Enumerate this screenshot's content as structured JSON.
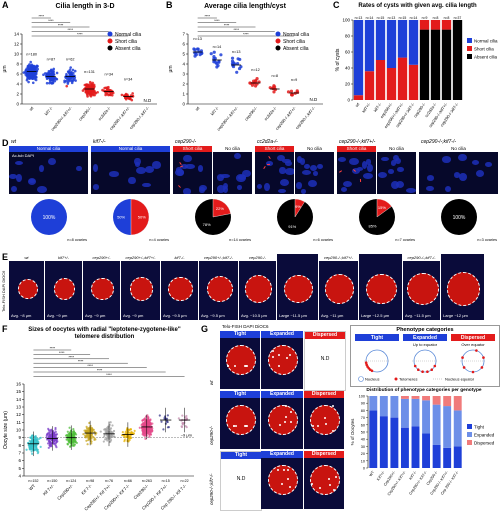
{
  "panels": {
    "A": {
      "letter": "A",
      "title": "Cilia length in 3-D",
      "ylabel": "μm",
      "legend": [
        "Normal cilia",
        "Short cilia",
        "Absent cilia"
      ],
      "genotypes": [
        "wt",
        "kif7-/-",
        "cep290+/-;kif7+/-",
        "cep290-/-",
        "cc2d2a-/-",
        "cep290-/-;kif7+/-",
        "cep290-/-;kif7-/-"
      ],
      "n": [
        "n=180",
        "n=87",
        "n=62",
        "n=131",
        "n=34",
        "n=34"
      ],
      "nd": "N.D",
      "stars": "****",
      "yticks": [
        "0",
        "2",
        "4",
        "6",
        "8",
        "10",
        "12",
        "14"
      ]
    },
    "B": {
      "letter": "B",
      "title": "Average cilia length/cyst",
      "ylabel": "μm",
      "legend": [
        "Normal cilia",
        "Short cilia",
        "Absent cilia"
      ],
      "n": [
        "n=13",
        "n=14",
        "n=13",
        "n=12",
        "n=8",
        "n=9"
      ],
      "nd": "N.D",
      "stars": "****",
      "yticks": [
        "0",
        "1",
        "2",
        "3",
        "4",
        "5",
        "6",
        "7"
      ]
    },
    "C": {
      "letter": "C",
      "title": "Rates of cysts with given avg. cilia length",
      "ylabel": "% of cysts",
      "legend": [
        "Normal cilia",
        "Short cilia",
        "Absent cilia"
      ],
      "n": [
        "n=13",
        "n=14",
        "n=15",
        "n=13",
        "n=15",
        "n=14",
        "n=9",
        "n=8",
        "n=8",
        "n=37"
      ],
      "genotypes": [
        "wt",
        "kif7+/-",
        "kif7-/-",
        "cep290+/-",
        "cep290+/-;kif7+/-",
        "cep290+/-;kif7-/-",
        "cep290-/-",
        "cc2d2a-/-",
        "cep290-/-;kif7+/-",
        "cep290-/-;kif7-/-"
      ],
      "yticks": [
        "0",
        "20",
        "40",
        "60",
        "80",
        "100"
      ]
    },
    "D": {
      "letter": "D",
      "groups": [
        {
          "genotype": "wt",
          "tiles": [
            "Normal cilia"
          ],
          "pie": "100%",
          "n": "n=8 ovaries"
        },
        {
          "genotype": "kif7-/-",
          "tiles": [
            "Normal cilia"
          ],
          "pie_a": "50%",
          "pie_b": "50%",
          "n": "n=4 ovaries"
        },
        {
          "genotype": "cep290-/-",
          "tiles": [
            "Short cilia",
            "No cilia"
          ],
          "pie_a": "22%",
          "pie_b": "78%",
          "n": "n=14 ovaries"
        },
        {
          "genotype": "cc2d2a-/-",
          "tiles": [
            "Short cilia",
            "No cilia"
          ],
          "pie_a": "9%",
          "pie_b": "91%",
          "n": "n=6 ovaries"
        },
        {
          "genotype": "cep290-/-;kif7+/-",
          "tiles": [
            "Short cilia",
            "No cilia"
          ],
          "pie_a": "15%",
          "pie_b": "85%",
          "n": "n=7 ovaries"
        },
        {
          "genotype": "cep290-/-;kif7-/-",
          "tiles": [
            "No cilia"
          ],
          "pie": "100%",
          "n": "n=3 ovaries"
        }
      ],
      "stain": "Ac-tub DAPI"
    },
    "E": {
      "letter": "E",
      "side": "Telo-FISH DAPI DiOC6",
      "cells": [
        {
          "g": "wt",
          "avg": "Avg. ~8 μm"
        },
        {
          "g": "kif7+/-",
          "avg": "Avg. ~9 μm"
        },
        {
          "g": "cep290+/-",
          "avg": "Avg. ~9 μm"
        },
        {
          "g": "cep290+/-;kif7+/-",
          "avg": "Avg. ~9 μm"
        },
        {
          "g": "kif7-/-",
          "avg": "Avg. ~9.5 μm"
        },
        {
          "g": "cep290+/-;kif7-/-",
          "avg": "Avg. ~9.5 μm"
        },
        {
          "g": "cep290-/-",
          "avg": "Avg. ~10.5 μm"
        },
        {
          "g": "",
          "avg": "Large ~11.5 μm"
        },
        {
          "g": "cep290-/-;kif7+/-",
          "avg": "Avg. ~11 μm"
        },
        {
          "g": "",
          "avg": "Large ~12.5 μm"
        },
        {
          "g": "cep290-/-;kif7-/-",
          "avg": "Avg. ~11.5 μm"
        },
        {
          "g": "",
          "avg": "Large ~12 μm"
        }
      ]
    },
    "F": {
      "letter": "F",
      "title": "Sizes of oocytes with radial \"leptotene-zygotene-like\"",
      "title2": "telomere distribution",
      "ylabel": "Oocyte size (μm)",
      "genotypes": [
        "WT",
        "Kif 7+/-",
        "Cep290+/-",
        "Kif 7-/-",
        "Cep290+/- Kif 7+/-",
        "Cep290+/- Kif 7-/-",
        "Cep290-/-",
        "Cep290-/- Kif 7+/-",
        "Cep 290-/- Kif 7-/-"
      ],
      "n": [
        "n=152",
        "n=150",
        "n=124",
        "n=98",
        "n=76",
        "n=66",
        "n=263",
        "n=15",
        "n=22"
      ],
      "marker": "~9 μm",
      "stars": "****",
      "yticks": [
        "4",
        "5",
        "6",
        "7",
        "8",
        "9",
        "10",
        "11",
        "12",
        "13",
        "14",
        "15",
        "16"
      ]
    },
    "G": {
      "letter": "G",
      "stain": "Telo-FISH DAPI DiOC6",
      "rows": [
        {
          "g": "wt",
          "heads": [
            "Tight",
            "Expanded",
            "Dispersed"
          ],
          "nd": "N.D"
        },
        {
          "g": "cep290-/-",
          "heads": [
            "Tight",
            "Expanded",
            "Dispersed"
          ]
        },
        {
          "g": "cep290-/-;kif7-/-",
          "heads": [
            "Tight",
            "Expanded",
            "Dispersed"
          ],
          "nd": "N.D"
        }
      ],
      "pheno_title": "Phenotype categories",
      "pheno": [
        "Tight",
        "Expanded",
        "Dispersed"
      ],
      "pheno_sub": [
        "",
        "Up to equator",
        "Over equator"
      ],
      "pheno_legend": [
        "Nucleus",
        "Telomeres",
        "Nucleus equator"
      ],
      "dist_title": "Distribution of phenotype categories per genotype",
      "dist_ylabel": "% of Oocytes",
      "dist_legend": [
        "Tight",
        "Expanded",
        "Dispersed"
      ],
      "dist_genotypes": [
        "WT",
        "Kif7+/-",
        "Cep290+/-",
        "Cep290+/- Kif7+/-",
        "Kif7-/-",
        "Cep290+/- Kif7-/-",
        "Cep290-/-",
        "Cep290-/- Kif7+/-",
        "Cep 290-/- Kif7-/-"
      ],
      "yticks": [
        "0",
        "10",
        "20",
        "30",
        "40",
        "50",
        "60",
        "70",
        "80",
        "90",
        "100"
      ]
    }
  },
  "colors": {
    "blue": "#1e3fd8",
    "red": "#e31b1b",
    "black": "#000000",
    "navy": "#06082a",
    "microred": "#c8140f"
  },
  "chart_data": [
    {
      "type": "scatter",
      "title": "Cilia length in 3-D",
      "ylabel": "μm",
      "ylim": [
        0,
        14
      ],
      "categories": [
        "wt",
        "kif7-/-",
        "cep290+/-;kif7+/-",
        "cep290-/-",
        "cc2d2a-/-",
        "cep290-/-;kif7+/-",
        "cep290-/-;kif7-/-"
      ],
      "means": [
        6.5,
        5.5,
        5.5,
        3.0,
        2.5,
        1.5,
        0
      ]
    },
    {
      "type": "scatter",
      "title": "Average cilia length/cyst",
      "ylabel": "μm",
      "ylim": [
        0,
        7
      ],
      "categories": [
        "wt",
        "kif7-/-",
        "cep290+/-;kif7+/-",
        "cep290-/-",
        "cc2d2a-/-",
        "cep290-/-;kif7+/-",
        "cep290-/-;kif7-/-"
      ],
      "means": [
        5.2,
        4.4,
        3.9,
        2.1,
        1.5,
        1.1,
        0
      ]
    },
    {
      "type": "bar",
      "title": "Rates of cysts with given avg. cilia length",
      "ylabel": "% of cysts",
      "ylim": [
        0,
        100
      ],
      "categories": [
        "wt",
        "kif7+/-",
        "kif7-/-",
        "cep290+/-",
        "cep290+/-;kif7+/-",
        "cep290+/-;kif7-/-",
        "cep290-/-",
        "cc2d2a-/-",
        "cep290-/-;kif7+/-",
        "cep290-/-;kif7-/-"
      ],
      "series": [
        {
          "name": "Absent cilia",
          "values": [
            0,
            0,
            0,
            0,
            0,
            0,
            88,
            88,
            88,
            100
          ]
        },
        {
          "name": "Short cilia",
          "values": [
            6,
            36,
            50,
            40,
            53,
            44,
            12,
            12,
            12,
            0
          ]
        },
        {
          "name": "Normal cilia",
          "values": [
            94,
            64,
            50,
            60,
            47,
            56,
            0,
            0,
            0,
            0
          ]
        }
      ]
    },
    {
      "type": "scatter",
      "title": "Sizes of oocytes with radial \"leptotene-zygotene-like\" telomere distribution",
      "ylabel": "Oocyte size (μm)",
      "ylim": [
        4,
        16
      ],
      "categories": [
        "WT",
        "Kif 7+/-",
        "Cep290+/-",
        "Kif 7-/-",
        "Cep290+/- Kif 7+/-",
        "Cep290+/- Kif 7-/-",
        "Cep290-/-",
        "Cep290-/- Kif 7+/-",
        "Cep 290-/- Kif 7-/-"
      ],
      "means": [
        8.2,
        8.9,
        9.0,
        9.6,
        9.5,
        9.4,
        10.4,
        11.3,
        11.3
      ]
    },
    {
      "type": "bar",
      "title": "Distribution of phenotype categories per genotype",
      "ylabel": "% of Oocytes",
      "ylim": [
        0,
        100
      ],
      "categories": [
        "WT",
        "Kif7+/-",
        "Cep290+/-",
        "Cep290+/- Kif7+/-",
        "Kif7-/-",
        "Cep290+/- Kif7-/-",
        "Cep290-/-",
        "Cep290-/- Kif7+/-",
        "Cep 290-/- Kif7-/-"
      ],
      "series": [
        {
          "name": "Tight",
          "values": [
            80,
            72,
            70,
            56,
            58,
            48,
            32,
            28,
            30
          ]
        },
        {
          "name": "Expanded",
          "values": [
            20,
            28,
            30,
            40,
            38,
            46,
            56,
            58,
            50
          ]
        },
        {
          "name": "Dispersed",
          "values": [
            0,
            0,
            0,
            4,
            4,
            6,
            12,
            14,
            20
          ]
        }
      ]
    }
  ]
}
